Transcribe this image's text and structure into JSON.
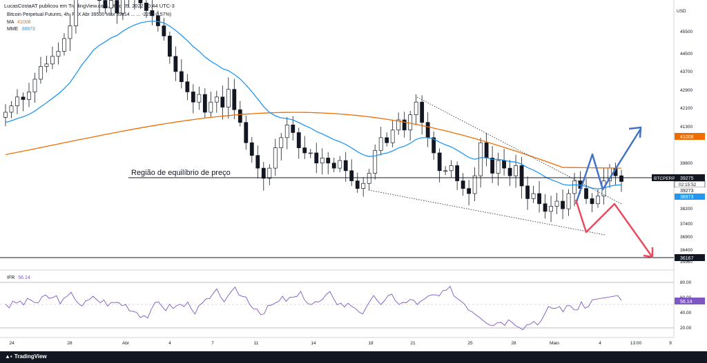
{
  "header": {
    "publish_line": "LucasCostaAT publicou em TradingView.com, Maio 05, 2022 10:44 UTC-3",
    "symbol_line": "Bitcoin Perpetual Futures, 4h, FTX  Abr 39500  Máx 39614  ...  ...  -225 (-0.57%)"
  },
  "legend": {
    "ma_label": "MA",
    "ma_value": "41008",
    "mme_label": "MME",
    "mme_value": "38973",
    "ifr_label": "IFR",
    "ifr_value": "56.14"
  },
  "price_axis": {
    "currency": "USD",
    "ticks": [
      "45500",
      "44500",
      "43700",
      "42900",
      "42100",
      "41300",
      "40500",
      "39800",
      "39000",
      "38200",
      "37400",
      "36900",
      "36400",
      "35960"
    ]
  },
  "price_labels": {
    "ma": {
      "text": "41008",
      "color": "#ef6c00"
    },
    "symbol": {
      "text": "BTCPERP",
      "color": "#131722"
    },
    "last_price": {
      "text": "39275",
      "color": "#131722"
    },
    "countdown": {
      "text": "02:15:52"
    },
    "ema": {
      "text": "39273",
      "color": "#2196f3"
    },
    "ema2": {
      "text": "38973",
      "color": "#2196f3"
    },
    "support": {
      "text": "36167",
      "color": "#131722"
    }
  },
  "rsi_axis": {
    "ticks": [
      "80.00",
      "60.00",
      "40.00",
      "20.00"
    ],
    "current": "56.14"
  },
  "time_axis": {
    "ticks": [
      "24",
      "28",
      "Abr",
      "4",
      "7",
      "11",
      "14",
      "18",
      "21",
      "25",
      "28",
      "Maio",
      "4",
      "13:00",
      "9"
    ]
  },
  "annotation": {
    "equilibrium_label": "Região de equilíbrio de preço"
  },
  "colors": {
    "ma": "#ef6c00",
    "ema": "#2196f3",
    "rsi": "#7e57c2",
    "arrow_up": "#4472c4",
    "arrow_down": "#e84a5f",
    "candle": "#131722"
  },
  "footer": {
    "brand": "TradingView"
  },
  "chart_data": [
    {
      "type": "candlestick",
      "title": "Bitcoin Perpetual Futures, 4h, FTX",
      "ylabel": "USD",
      "ylim": [
        35900,
        46200
      ],
      "x_ticks": [
        "24",
        "28",
        "Abr",
        "4",
        "7",
        "11",
        "14",
        "18",
        "21",
        "25",
        "28",
        "Maio",
        "4",
        "13:00",
        "9"
      ],
      "close": [
        42000,
        42250,
        42600,
        42500,
        42800,
        43300,
        43800,
        43900,
        44200,
        44400,
        44900,
        45400,
        46700,
        47200,
        46900,
        47300,
        46400,
        46100,
        46400,
        45900,
        46800,
        46600,
        46500,
        46300,
        46000,
        45800,
        45400,
        45000,
        44200,
        43600,
        43200,
        42800,
        42400,
        42700,
        42000,
        42400,
        42600,
        42200,
        42900,
        42100,
        41600,
        40800,
        40300,
        39800,
        39400,
        39800,
        40600,
        41000,
        41500,
        41200,
        40600,
        40400,
        40400,
        40000,
        40200,
        40000,
        39800,
        40100,
        39700,
        39300,
        39000,
        39200,
        39600,
        40500,
        41000,
        40800,
        41300,
        41700,
        41300,
        41900,
        42400,
        41600,
        41000,
        40400,
        39700,
        39700,
        39900,
        39300,
        39000,
        38800,
        39500,
        40800,
        40200,
        39600,
        40100,
        39800,
        39500,
        39900,
        39100,
        38600,
        38800,
        38400,
        38100,
        38300,
        38500,
        38200,
        38800,
        39300,
        39000,
        38600,
        38400,
        38700,
        39300,
        39800,
        39500,
        39275
      ],
      "series": [
        {
          "name": "MA",
          "last": 41008
        },
        {
          "name": "MME",
          "last": 38973
        }
      ],
      "annotations": [
        "Região de equilíbrio de preço"
      ],
      "horizontal_levels": [
        39275,
        36167
      ]
    },
    {
      "type": "line",
      "title": "IFR",
      "series": [
        {
          "name": "IFR",
          "last": 56.14
        }
      ],
      "ylim": [
        10,
        90
      ],
      "y_ticks": [
        80,
        60,
        40,
        20
      ]
    }
  ]
}
